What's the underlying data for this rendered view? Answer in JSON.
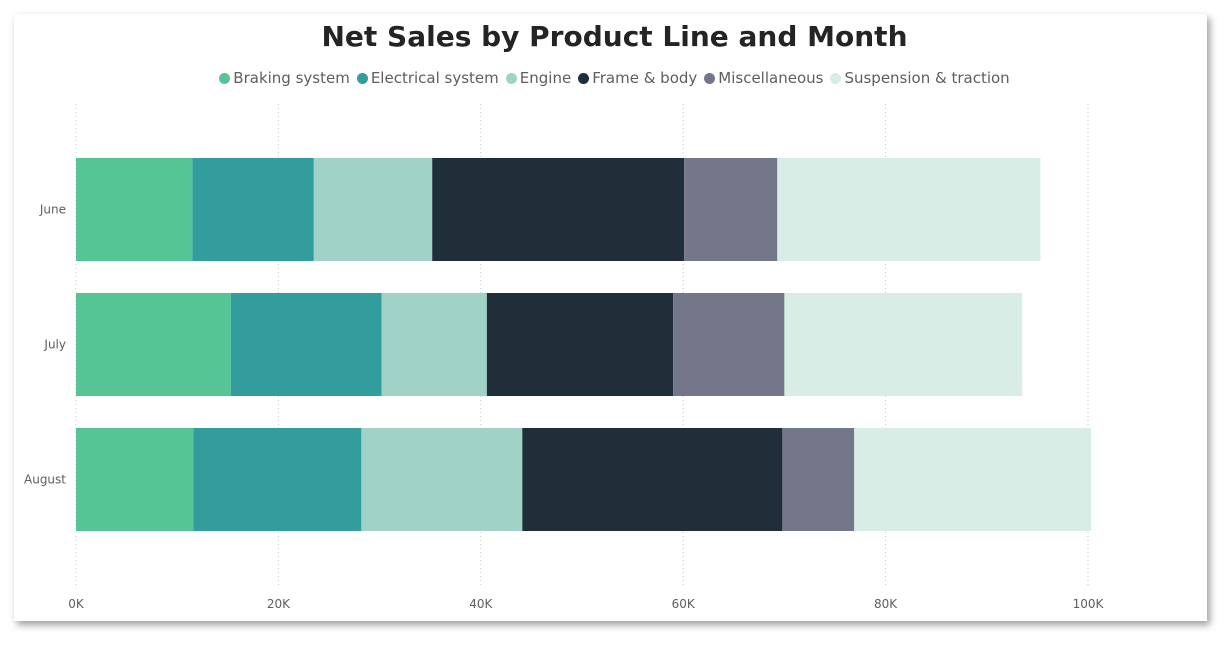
{
  "chart_data": {
    "type": "bar",
    "orientation": "horizontal",
    "stacked": true,
    "title": "Net Sales by Product Line and Month",
    "legend_position": "top-center",
    "categories": [
      "June",
      "July",
      "August"
    ],
    "series": [
      {
        "name": "Braking system",
        "color": "#56c596",
        "values": [
          11500,
          15300,
          11600
        ]
      },
      {
        "name": "Electrical system",
        "color": "#329d9c",
        "values": [
          12000,
          14900,
          16600
        ]
      },
      {
        "name": "Engine",
        "color": "#a0d3c5",
        "values": [
          11700,
          10400,
          15900
        ]
      },
      {
        "name": "Frame & body",
        "color": "#202e39",
        "values": [
          24900,
          18400,
          25700
        ]
      },
      {
        "name": "Miscellaneous",
        "color": "#737789",
        "values": [
          9200,
          11000,
          7100
        ]
      },
      {
        "name": "Suspension & traction",
        "color": "#d9ede7",
        "values": [
          26000,
          23500,
          23400
        ]
      }
    ],
    "x_ticks": [
      "0K",
      "20K",
      "40K",
      "60K",
      "80K",
      "100K"
    ],
    "x_tick_values": [
      0,
      20000,
      40000,
      60000,
      80000,
      100000
    ],
    "xlim": [
      0,
      108000
    ],
    "grid": "vertical dotted",
    "xlabel": "",
    "ylabel": ""
  }
}
